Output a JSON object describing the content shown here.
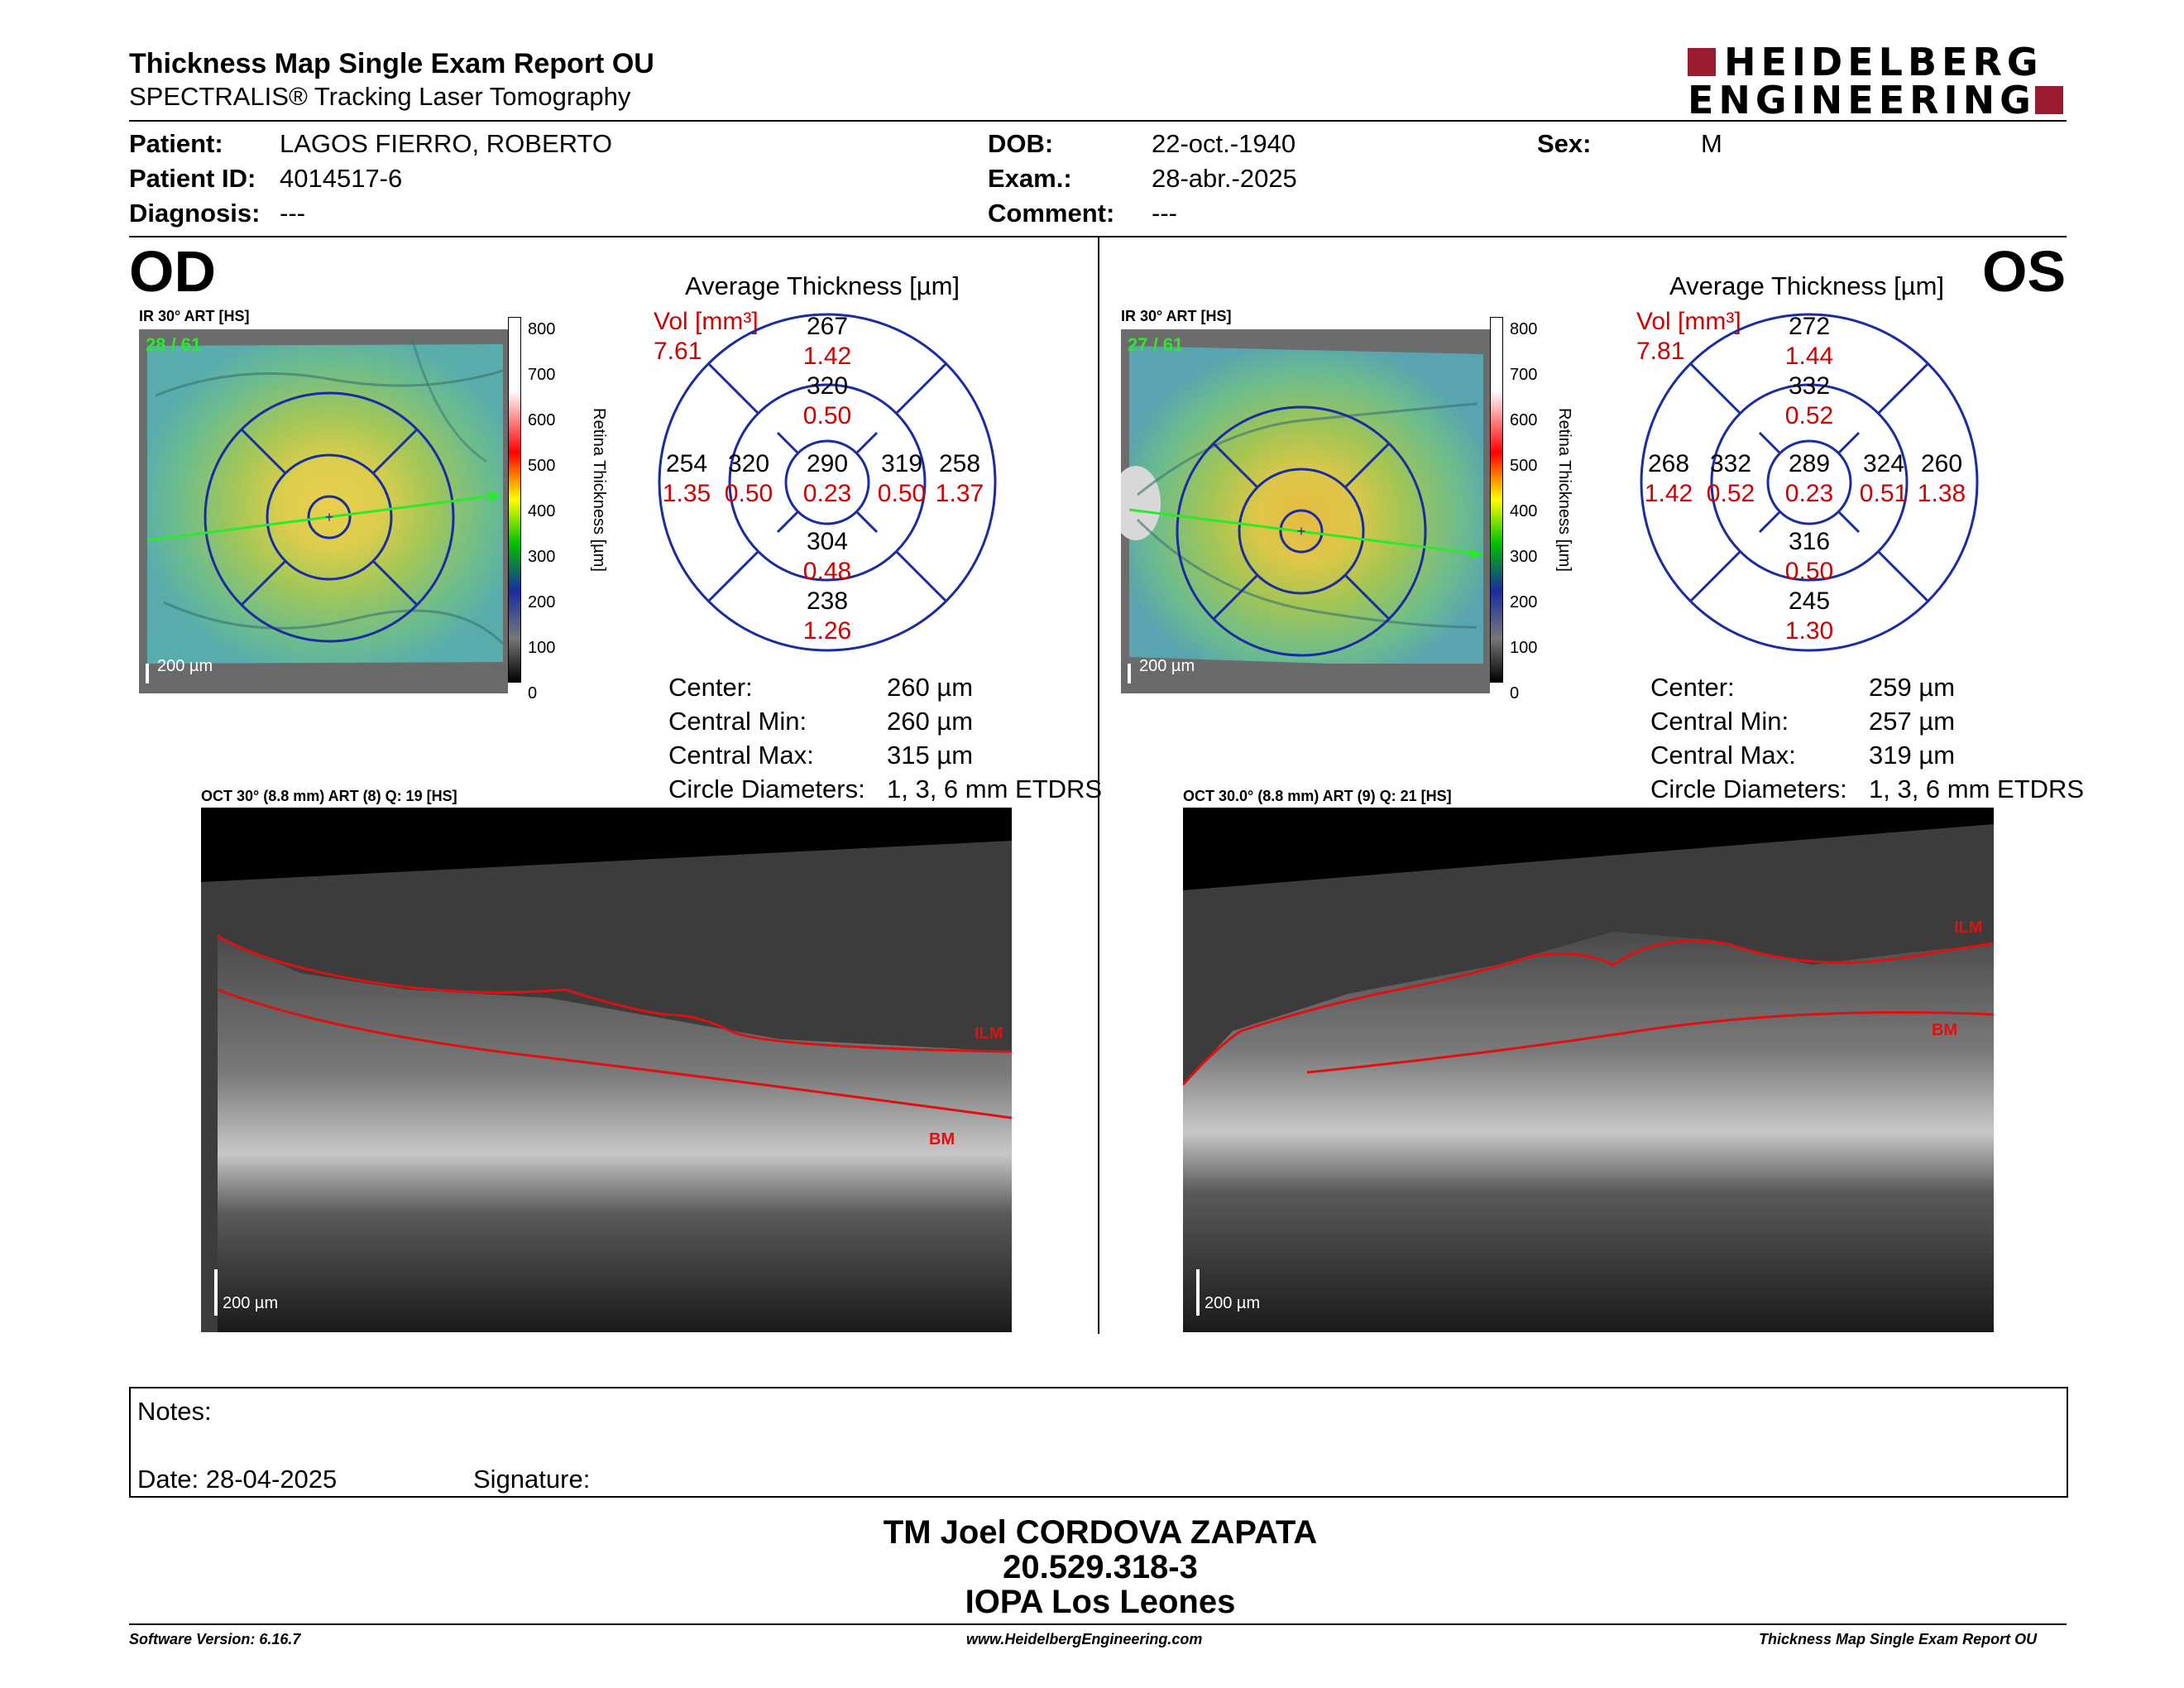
{
  "header": {
    "title": "Thickness Map Single Exam Report OU",
    "subtitle": "SPECTRALIS® Tracking Laser Tomography",
    "logo_line1": "HEIDELBERG",
    "logo_line2": "ENGINEERING",
    "logo_color": "#9b1b30"
  },
  "patient": {
    "patient_label": "Patient:",
    "patient_value": "LAGOS FIERRO, ROBERTO",
    "id_label": "Patient ID:",
    "id_value": "4014517-6",
    "diagnosis_label": "Diagnosis:",
    "diagnosis_value": "---",
    "dob_label": "DOB:",
    "dob_value": "22-oct.-1940",
    "exam_label": "Exam.:",
    "exam_value": "28-abr.-2025",
    "comment_label": "Comment:",
    "comment_value": "---",
    "sex_label": "Sex:",
    "sex_value": "M"
  },
  "od": {
    "eye": "OD",
    "ir_label": "IR 30° ART [HS]",
    "ir_count": "28 / 61",
    "scale_label": "200 µm",
    "colorbar_ticks": [
      "800",
      "700",
      "600",
      "500",
      "400",
      "300",
      "200",
      "100",
      "0"
    ],
    "colorbar_title": "Retina Thickness [µm]",
    "avg_title": "Average Thickness [µm]",
    "vol_label": "Vol [mm³]",
    "vol_value": "7.61",
    "sectors": {
      "center": {
        "t": "290",
        "v": "0.23"
      },
      "inner_sup": {
        "t": "320",
        "v": "0.50"
      },
      "inner_inf": {
        "t": "304",
        "v": "0.48"
      },
      "inner_left": {
        "t": "320",
        "v": "0.50"
      },
      "inner_right": {
        "t": "319",
        "v": "0.50"
      },
      "outer_sup": {
        "t": "267",
        "v": "1.42"
      },
      "outer_inf": {
        "t": "238",
        "v": "1.26"
      },
      "outer_left": {
        "t": "254",
        "v": "1.35"
      },
      "outer_right": {
        "t": "258",
        "v": "1.37"
      }
    },
    "stats": [
      {
        "label": "Center:",
        "value": "260 µm"
      },
      {
        "label": "Central Min:",
        "value": "260 µm"
      },
      {
        "label": "Central Max:",
        "value": "315 µm"
      },
      {
        "label": "Circle Diameters:",
        "value": "1, 3, 6 mm ETDRS"
      }
    ],
    "oct_label": "OCT 30° (8.8 mm) ART (8) Q: 19 [HS]",
    "ilm": "ILM",
    "bm": "BM",
    "oct_scale": "200 µm"
  },
  "os": {
    "eye": "OS",
    "ir_label": "IR 30° ART [HS]",
    "ir_count": "27 / 61",
    "scale_label": "200 µm",
    "colorbar_ticks": [
      "800",
      "700",
      "600",
      "500",
      "400",
      "300",
      "200",
      "100",
      "0"
    ],
    "colorbar_title": "Retina Thickness [µm]",
    "avg_title": "Average Thickness [µm]",
    "vol_label": "Vol [mm³]",
    "vol_value": "7.81",
    "sectors": {
      "center": {
        "t": "289",
        "v": "0.23"
      },
      "inner_sup": {
        "t": "332",
        "v": "0.52"
      },
      "inner_inf": {
        "t": "316",
        "v": "0.50"
      },
      "inner_left": {
        "t": "332",
        "v": "0.52"
      },
      "inner_right": {
        "t": "324",
        "v": "0.51"
      },
      "outer_sup": {
        "t": "272",
        "v": "1.44"
      },
      "outer_inf": {
        "t": "245",
        "v": "1.30"
      },
      "outer_left": {
        "t": "268",
        "v": "1.42"
      },
      "outer_right": {
        "t": "260",
        "v": "1.38"
      }
    },
    "stats": [
      {
        "label": "Center:",
        "value": "259 µm"
      },
      {
        "label": "Central Min:",
        "value": "257 µm"
      },
      {
        "label": "Central Max:",
        "value": "319 µm"
      },
      {
        "label": "Circle Diameters:",
        "value": "1, 3, 6 mm ETDRS"
      }
    ],
    "oct_label": "OCT 30.0° (8.8 mm) ART (9) Q: 21 [HS]",
    "ilm": "ILM",
    "bm": "BM",
    "oct_scale": "200 µm"
  },
  "notes": {
    "notes_label": "Notes:",
    "date_label": "Date: 28-04-2025",
    "signature_label": "Signature:"
  },
  "technician": {
    "name": "TM Joel CORDOVA ZAPATA",
    "id": "20.529.318-3",
    "site": "IOPA Los Leones"
  },
  "footer": {
    "software": "Software Version: 6.16.7",
    "website": "www.HeidelbergEngineering.com",
    "report": "Thickness Map Single Exam Report OU"
  }
}
